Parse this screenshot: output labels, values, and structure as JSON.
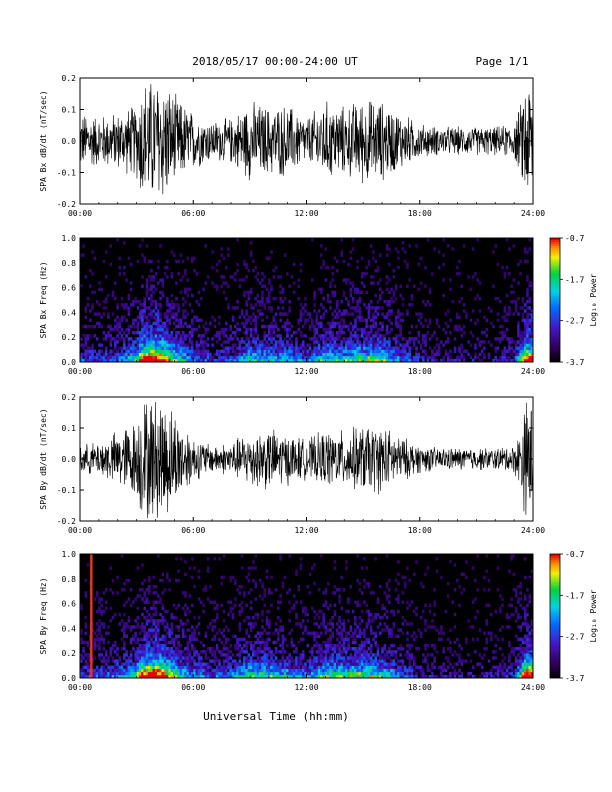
{
  "header": {
    "title": "2018/05/17  00:00-24:00 UT",
    "page": "Page 1/1"
  },
  "footer": {
    "xlabel": "Universal Time (hh:mm)"
  },
  "chart_data": [
    {
      "type": "line",
      "ylabel": "SPA Bx dB/dt (nT/sec)",
      "xlim": [
        0,
        24
      ],
      "ylim": [
        -0.2,
        0.2
      ],
      "x_ticks": [
        "00:00",
        "06:00",
        "12:00",
        "18:00",
        "24:00"
      ],
      "y_ticks": [
        "-0.2",
        "-0.1",
        "0.0",
        "0.1",
        "0.2"
      ],
      "envelope": {
        "hours": [
          0,
          1,
          2,
          3,
          3.3,
          4,
          4.5,
          5,
          6,
          7,
          8,
          9,
          10,
          11,
          12,
          13,
          14,
          15,
          16,
          17,
          18,
          19,
          20,
          21,
          22,
          23,
          23.4,
          23.6,
          24
        ],
        "amplitude": [
          0.1,
          0.09,
          0.1,
          0.13,
          0.22,
          0.22,
          0.22,
          0.16,
          0.1,
          0.07,
          0.08,
          0.14,
          0.12,
          0.13,
          0.08,
          0.14,
          0.12,
          0.15,
          0.14,
          0.1,
          0.06,
          0.05,
          0.05,
          0.05,
          0.05,
          0.06,
          0.14,
          0.22,
          0.22
        ]
      }
    },
    {
      "type": "heatmap",
      "ylabel": "SPA Bx Freq (Hz)",
      "xlim": [
        0,
        24
      ],
      "ylim": [
        0,
        1.0
      ],
      "x_ticks": [
        "00:00",
        "06:00",
        "12:00",
        "18:00",
        "24:00"
      ],
      "y_ticks": [
        "0.0",
        "0.2",
        "0.4",
        "0.6",
        "0.8",
        "1.0"
      ],
      "colorbar": {
        "label": "Log₁₀ Power",
        "range": [
          -3.7,
          -0.7
        ],
        "ticks": [
          "-0.7",
          "-1.7",
          "-2.7",
          "-3.7"
        ]
      },
      "activity": {
        "hours": [
          0,
          1,
          2,
          3,
          3.3,
          4,
          4.5,
          5,
          6,
          7,
          8,
          9,
          10,
          11,
          12,
          13,
          14,
          15,
          16,
          17,
          18,
          19,
          20,
          21,
          22,
          23,
          23.4,
          23.6,
          24
        ],
        "intensity": [
          0.3,
          0.25,
          0.3,
          0.55,
          0.9,
          0.95,
          0.85,
          0.6,
          0.35,
          0.25,
          0.3,
          0.5,
          0.45,
          0.45,
          0.3,
          0.55,
          0.5,
          0.6,
          0.55,
          0.35,
          0.2,
          0.15,
          0.15,
          0.15,
          0.15,
          0.25,
          0.6,
          0.9,
          0.9
        ]
      }
    },
    {
      "type": "line",
      "ylabel": "SPA By dB/dt (nT/sec)",
      "xlim": [
        0,
        24
      ],
      "ylim": [
        -0.2,
        0.2
      ],
      "x_ticks": [
        "00:00",
        "06:00",
        "12:00",
        "18:00",
        "24:00"
      ],
      "y_ticks": [
        "-0.2",
        "-0.1",
        "0.0",
        "0.1",
        "0.2"
      ],
      "envelope": {
        "hours": [
          0,
          1,
          2,
          3,
          3.3,
          4,
          4.5,
          5,
          6,
          7,
          8,
          9,
          10,
          11,
          12,
          13,
          14,
          15,
          16,
          17,
          18,
          19,
          20,
          21,
          22,
          23,
          23.4,
          23.6,
          24
        ],
        "amplitude": [
          0.05,
          0.06,
          0.1,
          0.14,
          0.22,
          0.22,
          0.22,
          0.17,
          0.08,
          0.05,
          0.06,
          0.1,
          0.11,
          0.09,
          0.07,
          0.1,
          0.1,
          0.12,
          0.12,
          0.08,
          0.05,
          0.04,
          0.04,
          0.04,
          0.04,
          0.05,
          0.12,
          0.22,
          0.22
        ]
      }
    },
    {
      "type": "heatmap",
      "ylabel": "SPA By Freq (Hz)",
      "xlim": [
        0,
        24
      ],
      "ylim": [
        0,
        1.0
      ],
      "x_ticks": [
        "00:00",
        "06:00",
        "12:00",
        "18:00",
        "24:00"
      ],
      "y_ticks": [
        "0.0",
        "0.2",
        "0.4",
        "0.6",
        "0.8",
        "1.0"
      ],
      "colorbar": {
        "label": "Log₁₀ Power",
        "range": [
          -3.7,
          -0.7
        ],
        "ticks": [
          "-0.7",
          "-1.7",
          "-2.7",
          "-3.7"
        ]
      },
      "marker_hour": 0.6,
      "activity": {
        "hours": [
          0,
          1,
          2,
          3,
          3.3,
          4,
          4.5,
          5,
          6,
          7,
          8,
          9,
          10,
          11,
          12,
          13,
          14,
          15,
          16,
          17,
          18,
          19,
          20,
          21,
          22,
          23,
          23.4,
          23.6,
          24
        ],
        "intensity": [
          0.3,
          0.3,
          0.35,
          0.55,
          0.9,
          0.95,
          0.85,
          0.6,
          0.4,
          0.3,
          0.35,
          0.55,
          0.55,
          0.45,
          0.35,
          0.55,
          0.55,
          0.6,
          0.55,
          0.35,
          0.2,
          0.15,
          0.15,
          0.15,
          0.15,
          0.25,
          0.6,
          0.9,
          0.9
        ]
      }
    }
  ]
}
